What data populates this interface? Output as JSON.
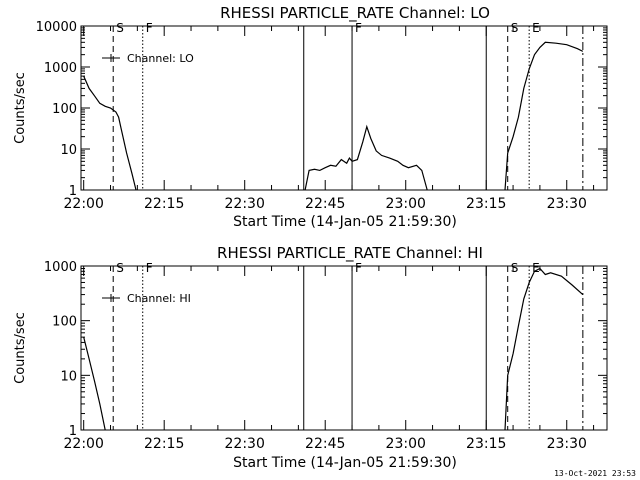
{
  "footer_date": "13-Oct-2021 23:53",
  "chart_data": [
    {
      "type": "line",
      "title": "RHESSI PARTICLE_RATE Channel: LO",
      "xlabel": "Start Time (14-Jan-05 21:59:30)",
      "ylabel": "Counts/sec",
      "yscale": "log",
      "ylim": [
        1,
        10000
      ],
      "xlim_minutes_after_start": [
        0,
        98
      ],
      "x_ticks": [
        "22:00",
        "22:15",
        "22:30",
        "22:45",
        "23:00",
        "23:15",
        "23:30"
      ],
      "y_ticks": [
        "1",
        "10",
        "100",
        "1000",
        "10000"
      ],
      "legend": "Channel: LO",
      "legend_placement": "top-left",
      "markers": [
        {
          "label": "S",
          "time": "22:05:30",
          "style": "dashed"
        },
        {
          "label": "F",
          "time": "22:11:00",
          "style": "dotted"
        },
        {
          "label": "",
          "time": "22:41:00",
          "style": "solid"
        },
        {
          "label": "F",
          "time": "22:50:00",
          "style": "solid"
        },
        {
          "label": "",
          "time": "23:15:00",
          "style": "solid"
        },
        {
          "label": "S",
          "time": "23:19:00",
          "style": "dashed"
        },
        {
          "label": "E",
          "time": "23:23:00",
          "style": "dotted"
        },
        {
          "label": "",
          "time": "23:33:00",
          "style": "dashdot"
        }
      ],
      "series": [
        {
          "segments": [
            [
              [
                "22:00:00",
                600
              ],
              [
                "22:01:00",
                300
              ],
              [
                "22:02:00",
                200
              ],
              [
                "22:03:00",
                130
              ],
              [
                "22:04:00",
                110
              ],
              [
                "22:05:00",
                100
              ],
              [
                "22:06:00",
                80
              ],
              [
                "22:06:30",
                60
              ],
              [
                "22:07:00",
                30
              ],
              [
                "22:08:00",
                8
              ],
              [
                "22:09:00",
                2.5
              ],
              [
                "22:09:45",
                1
              ]
            ],
            [
              [
                "22:41:15",
                1
              ],
              [
                "22:42:00",
                3
              ],
              [
                "22:43:00",
                3.2
              ],
              [
                "22:44:00",
                3
              ],
              [
                "22:45:00",
                3.5
              ],
              [
                "22:46:00",
                4
              ],
              [
                "22:47:00",
                3.8
              ],
              [
                "22:48:00",
                5.5
              ],
              [
                "22:49:00",
                4.5
              ],
              [
                "22:49:30",
                6
              ],
              [
                "22:50:00",
                5
              ],
              [
                "22:51:00",
                5.5
              ],
              [
                "22:52:00",
                15
              ],
              [
                "22:52:45",
                35
              ],
              [
                "22:53:30",
                18
              ],
              [
                "22:54:30",
                9
              ],
              [
                "22:55:30",
                7
              ],
              [
                "22:57:00",
                6
              ],
              [
                "22:58:30",
                5
              ],
              [
                "22:59:30",
                4
              ],
              [
                "23:00:30",
                3.5
              ],
              [
                "23:02:00",
                4
              ],
              [
                "23:03:00",
                3
              ],
              [
                "23:04:00",
                1
              ]
            ],
            [
              [
                "23:18:30",
                1
              ],
              [
                "23:19:00",
                8
              ],
              [
                "23:20:00",
                20
              ],
              [
                "23:21:00",
                60
              ],
              [
                "23:22:00",
                300
              ],
              [
                "23:23:00",
                900
              ],
              [
                "23:24:00",
                2000
              ],
              [
                "23:25:00",
                3000
              ],
              [
                "23:26:00",
                4000
              ],
              [
                "23:28:00",
                3800
              ],
              [
                "23:30:00",
                3500
              ],
              [
                "23:32:00",
                2800
              ],
              [
                "23:33:00",
                2400
              ]
            ]
          ]
        }
      ]
    },
    {
      "type": "line",
      "title": "RHESSI PARTICLE_RATE Channel: HI",
      "xlabel": "Start Time (14-Jan-05 21:59:30)",
      "ylabel": "Counts/sec",
      "yscale": "log",
      "ylim": [
        1,
        1000
      ],
      "xlim_minutes_after_start": [
        0,
        98
      ],
      "x_ticks": [
        "22:00",
        "22:15",
        "22:30",
        "22:45",
        "23:00",
        "23:15",
        "23:30"
      ],
      "y_ticks": [
        "1",
        "10",
        "100",
        "1000"
      ],
      "legend": "Channel: HI",
      "legend_placement": "top-left",
      "markers": [
        {
          "label": "S",
          "time": "22:05:30",
          "style": "dashed"
        },
        {
          "label": "F",
          "time": "22:11:00",
          "style": "dotted"
        },
        {
          "label": "",
          "time": "22:41:00",
          "style": "solid"
        },
        {
          "label": "F",
          "time": "22:50:00",
          "style": "solid"
        },
        {
          "label": "",
          "time": "23:15:00",
          "style": "solid"
        },
        {
          "label": "S",
          "time": "23:19:00",
          "style": "dashed"
        },
        {
          "label": "E",
          "time": "23:23:00",
          "style": "dotted"
        },
        {
          "label": "",
          "time": "23:33:00",
          "style": "dashdot"
        }
      ],
      "series": [
        {
          "segments": [
            [
              [
                "22:00:00",
                50
              ],
              [
                "22:01:00",
                20
              ],
              [
                "22:02:00",
                8
              ],
              [
                "22:03:00",
                3
              ],
              [
                "22:04:00",
                1
              ]
            ],
            [
              [
                "23:18:30",
                1
              ],
              [
                "23:19:00",
                10
              ],
              [
                "23:20:00",
                25
              ],
              [
                "23:21:00",
                80
              ],
              [
                "23:22:00",
                250
              ],
              [
                "23:23:00",
                500
              ],
              [
                "23:24:00",
                800
              ],
              [
                "23:25:00",
                900
              ],
              [
                "23:26:00",
                700
              ],
              [
                "23:27:00",
                750
              ],
              [
                "23:29:00",
                650
              ],
              [
                "23:31:00",
                450
              ],
              [
                "23:33:00",
                300
              ]
            ]
          ]
        }
      ]
    }
  ]
}
